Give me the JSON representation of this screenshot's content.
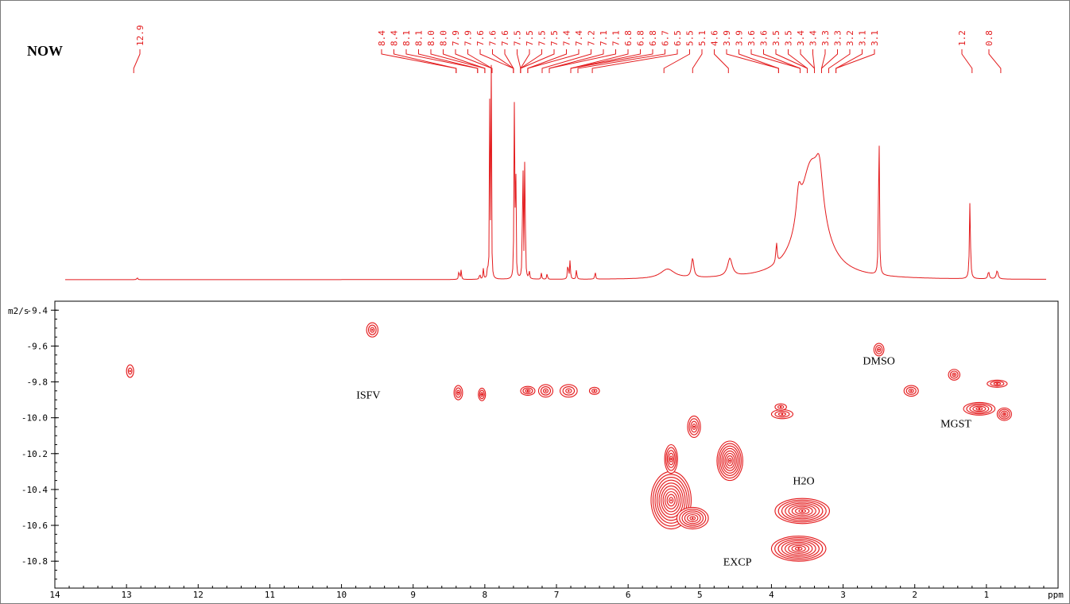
{
  "sample_label": "NOW",
  "chart_data": [
    {
      "type": "line",
      "name": "1H NMR spectrum",
      "x_unit": "ppm",
      "xlim": [
        14,
        0
      ],
      "peak_labels": [
        "12.9",
        "8.4",
        "8.4",
        "8.1",
        "8.1",
        "8.0",
        "8.0",
        "7.9",
        "7.9",
        "7.6",
        "7.6",
        "7.6",
        "7.5",
        "7.5",
        "7.5",
        "7.5",
        "7.4",
        "7.4",
        "7.2",
        "7.1",
        "7.1",
        "6.8",
        "6.8",
        "6.8",
        "6.7",
        "6.5",
        "5.5",
        "5.1",
        "4.6",
        "3.9",
        "3.9",
        "3.6",
        "3.6",
        "3.5",
        "3.5",
        "3.4",
        "3.4",
        "3.3",
        "3.3",
        "3.2",
        "3.1",
        "3.1",
        "1.2",
        "0.8"
      ],
      "peaks": [
        {
          "ppm": 12.85,
          "height": 0.01,
          "width": 0.008
        },
        {
          "ppm": 8.36,
          "height": 0.05,
          "width": 0.006
        },
        {
          "ppm": 8.33,
          "height": 0.045,
          "width": 0.006
        },
        {
          "ppm": 8.07,
          "height": 0.03,
          "width": 0.006
        },
        {
          "ppm": 8.02,
          "height": 0.05,
          "width": 0.006
        },
        {
          "ppm": 7.96,
          "height": 0.06,
          "width": 0.006
        },
        {
          "ppm": 7.93,
          "height": 1.0,
          "width": 0.004
        },
        {
          "ppm": 7.91,
          "height": 1.0,
          "width": 0.004
        },
        {
          "ppm": 7.59,
          "height": 1.0,
          "width": 0.004
        },
        {
          "ppm": 7.57,
          "height": 1.0,
          "width": 0.004
        },
        {
          "ppm": 7.47,
          "height": 1.0,
          "width": 0.004
        },
        {
          "ppm": 7.44,
          "height": 1.0,
          "width": 0.004
        },
        {
          "ppm": 7.38,
          "height": 0.04,
          "width": 0.006
        },
        {
          "ppm": 7.21,
          "height": 0.03,
          "width": 0.006
        },
        {
          "ppm": 7.13,
          "height": 0.03,
          "width": 0.006
        },
        {
          "ppm": 6.84,
          "height": 0.09,
          "width": 0.006
        },
        {
          "ppm": 6.81,
          "height": 0.09,
          "width": 0.006
        },
        {
          "ppm": 6.72,
          "height": 0.05,
          "width": 0.006
        },
        {
          "ppm": 6.46,
          "height": 0.04,
          "width": 0.006
        },
        {
          "ppm": 5.45,
          "height": 0.045,
          "width": 0.12
        },
        {
          "ppm": 5.1,
          "height": 0.09,
          "width": 0.02
        },
        {
          "ppm": 4.58,
          "height": 0.085,
          "width": 0.04
        },
        {
          "ppm": 3.93,
          "height": 0.1,
          "width": 0.01
        },
        {
          "ppm": 3.45,
          "height": 0.52,
          "width": 0.2
        },
        {
          "ppm": 3.62,
          "height": 0.15,
          "width": 0.04
        },
        {
          "ppm": 3.33,
          "height": 0.2,
          "width": 0.06
        },
        {
          "ppm": 2.5,
          "height": 0.88,
          "width": 0.006
        },
        {
          "ppm": 1.23,
          "height": 0.37,
          "width": 0.008
        },
        {
          "ppm": 0.97,
          "height": 0.035,
          "width": 0.012
        },
        {
          "ppm": 0.85,
          "height": 0.04,
          "width": 0.015
        }
      ]
    },
    {
      "type": "scatter",
      "name": "DOSY 2D",
      "xlabel": "ppm",
      "ylabel": "m2/s",
      "xlim": [
        14,
        0
      ],
      "ylim": [
        -9.35,
        -10.95
      ],
      "x_ticks": [
        14,
        13,
        12,
        11,
        10,
        9,
        8,
        7,
        6,
        5,
        4,
        3,
        2,
        1
      ],
      "y_ticks": [
        -10.8,
        -10.6,
        -10.4,
        -10.2,
        -10.0,
        -9.8,
        -9.6,
        -9.4
      ],
      "boxes": [
        {
          "label": "ISFV",
          "x0": 13.0,
          "x1": 6.25,
          "y0": -9.92,
          "y1": -9.46
        },
        {
          "label": "EXCP",
          "x0": 5.85,
          "x1": 3.1,
          "y0": -10.85,
          "y1": -9.89
        },
        {
          "label": "MGST",
          "x0": 2.2,
          "x1": 0.65,
          "y0": -10.08,
          "y1": -9.7
        }
      ],
      "annotations": [
        {
          "text": "H2O",
          "x": 3.55,
          "y": -10.35
        },
        {
          "text": "DMSO",
          "x": 2.5,
          "y": -9.68
        }
      ],
      "points": [
        {
          "x": 12.95,
          "y": -9.74,
          "rx": 0.05,
          "ry": 0.035,
          "n": 2
        },
        {
          "x": 9.57,
          "y": -9.51,
          "rx": 0.08,
          "ry": 0.04,
          "n": 3
        },
        {
          "x": 8.37,
          "y": -9.86,
          "rx": 0.06,
          "ry": 0.04,
          "n": 3
        },
        {
          "x": 8.04,
          "y": -9.87,
          "rx": 0.05,
          "ry": 0.035,
          "n": 3
        },
        {
          "x": 7.4,
          "y": -9.85,
          "rx": 0.1,
          "ry": 0.025,
          "n": 3
        },
        {
          "x": 7.15,
          "y": -9.85,
          "rx": 0.1,
          "ry": 0.035,
          "n": 3
        },
        {
          "x": 6.83,
          "y": -9.85,
          "rx": 0.12,
          "ry": 0.035,
          "n": 3
        },
        {
          "x": 6.47,
          "y": -9.85,
          "rx": 0.07,
          "ry": 0.02,
          "n": 2
        },
        {
          "x": 5.4,
          "y": -10.46,
          "rx": 0.28,
          "ry": 0.16,
          "n": 10
        },
        {
          "x": 5.1,
          "y": -10.56,
          "rx": 0.22,
          "ry": 0.06,
          "n": 6
        },
        {
          "x": 5.4,
          "y": -10.23,
          "rx": 0.09,
          "ry": 0.08,
          "n": 5
        },
        {
          "x": 5.08,
          "y": -10.05,
          "rx": 0.09,
          "ry": 0.06,
          "n": 4
        },
        {
          "x": 4.58,
          "y": -10.24,
          "rx": 0.18,
          "ry": 0.11,
          "n": 8
        },
        {
          "x": 3.62,
          "y": -10.73,
          "rx": 0.38,
          "ry": 0.07,
          "n": 8
        },
        {
          "x": 3.57,
          "y": -10.52,
          "rx": 0.38,
          "ry": 0.07,
          "n": 8
        },
        {
          "x": 3.85,
          "y": -9.98,
          "rx": 0.15,
          "ry": 0.025,
          "n": 3
        },
        {
          "x": 3.87,
          "y": -9.94,
          "rx": 0.08,
          "ry": 0.018,
          "n": 2
        },
        {
          "x": 2.5,
          "y": -9.62,
          "rx": 0.07,
          "ry": 0.035,
          "n": 3
        },
        {
          "x": 2.05,
          "y": -9.85,
          "rx": 0.1,
          "ry": 0.03,
          "n": 3
        },
        {
          "x": 1.45,
          "y": -9.76,
          "rx": 0.08,
          "ry": 0.03,
          "n": 3
        },
        {
          "x": 1.1,
          "y": -9.95,
          "rx": 0.22,
          "ry": 0.035,
          "n": 5
        },
        {
          "x": 0.75,
          "y": -9.98,
          "rx": 0.1,
          "ry": 0.035,
          "n": 4
        },
        {
          "x": 0.85,
          "y": -9.81,
          "rx": 0.14,
          "ry": 0.02,
          "n": 3
        }
      ]
    }
  ]
}
